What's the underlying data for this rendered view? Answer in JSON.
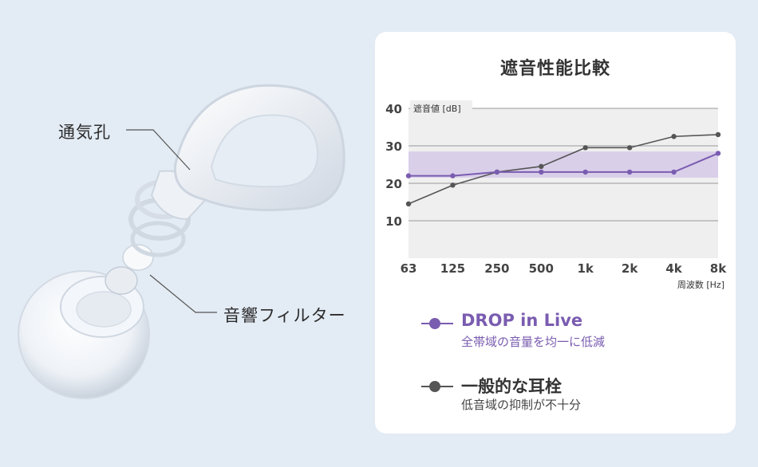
{
  "callouts": {
    "vent": "通気孔",
    "filter": "音響フィルター"
  },
  "chart_data": {
    "type": "line",
    "title": "遮音性能比較",
    "ylabel": "遮音値 [dB]",
    "xlabel": "周波数 [Hz]",
    "categories": [
      "63",
      "125",
      "250",
      "500",
      "1k",
      "2k",
      "4k",
      "8k"
    ],
    "yticks": [
      10,
      20,
      30,
      40
    ],
    "ylim": [
      0,
      40
    ],
    "band": [
      21.5,
      28.5
    ],
    "grid": true,
    "series": [
      {
        "name": "DROP in Live",
        "values": [
          22,
          22,
          23,
          23,
          23,
          23,
          23,
          28
        ],
        "color": "#7a5cb0"
      },
      {
        "name": "一般的な耳栓",
        "values": [
          14.5,
          19.5,
          23,
          24.5,
          29.5,
          29.5,
          32.5,
          33
        ],
        "color": "#555555"
      }
    ]
  },
  "legend": {
    "drop": {
      "name": "DROP in Live",
      "desc": "全帯域の音量を均一に低減"
    },
    "general": {
      "name": "一般的な耳栓",
      "desc": "低音域の抑制が不十分"
    }
  }
}
